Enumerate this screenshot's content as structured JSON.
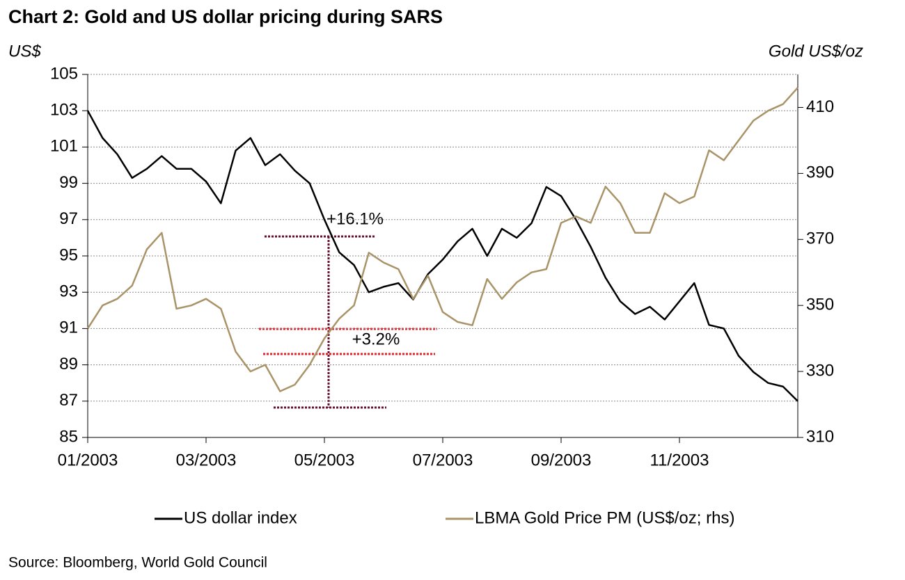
{
  "chart_data": {
    "type": "line",
    "title": "Chart 2: Gold and US dollar pricing during SARS",
    "y_label": "US$",
    "y2_label": "Gold US$/oz",
    "source": "Source: Bloomberg, World Gold Council",
    "annotations": [
      "+16.1%",
      "+3.2%"
    ],
    "categories": [
      "01/2003",
      null,
      null,
      null,
      null,
      null,
      null,
      null,
      "03/2003",
      null,
      null,
      null,
      null,
      null,
      null,
      null,
      "05/2003",
      null,
      null,
      null,
      null,
      null,
      null,
      null,
      "07/2003",
      null,
      null,
      null,
      null,
      null,
      null,
      null,
      "09/2003",
      null,
      null,
      null,
      null,
      null,
      null,
      null,
      "11/2003",
      null,
      null,
      null,
      null,
      null,
      null,
      null,
      null
    ],
    "series": [
      {
        "name": "US dollar index",
        "color": "#000000",
        "values": [
          103,
          101.5,
          100.6,
          99.3,
          99.8,
          100.5,
          99.8,
          99.8,
          99.1,
          97.9,
          100.8,
          101.5,
          100,
          100.6,
          99.7,
          99,
          97,
          95.2,
          94.5,
          93,
          93.3,
          93.5,
          92.6,
          94,
          94.8,
          95.8,
          96.5,
          95,
          96.5,
          96,
          96.8,
          98.8,
          98.3,
          97,
          95.5,
          93.8,
          92.5,
          91.8,
          92.2,
          91.5,
          92.5,
          93.5,
          91.2,
          91,
          89.5,
          88.6,
          88,
          87.8,
          87
        ]
      },
      {
        "name": "LBMA Gold Price PM (US$/oz; rhs)",
        "color": "#a89468",
        "axis": "y2",
        "values": [
          343,
          350,
          352,
          356,
          367,
          372,
          349,
          350,
          352,
          349,
          336,
          330,
          332,
          324,
          326,
          332,
          340,
          346,
          350,
          366,
          363,
          361,
          352,
          359,
          348,
          345,
          344,
          358,
          352,
          357,
          360,
          361,
          375,
          377,
          375,
          386,
          381,
          372,
          372,
          384,
          381,
          383,
          397,
          394,
          400,
          406,
          409,
          411,
          416
        ]
      }
    ],
    "ylim": [
      85,
      105
    ],
    "yticks": [
      85,
      87,
      89,
      91,
      93,
      95,
      97,
      99,
      101,
      103,
      105
    ],
    "y2lim": [
      310,
      420
    ],
    "y2ticks": [
      310,
      330,
      350,
      370,
      390,
      410
    ],
    "grid": true,
    "legend": "bottom"
  }
}
